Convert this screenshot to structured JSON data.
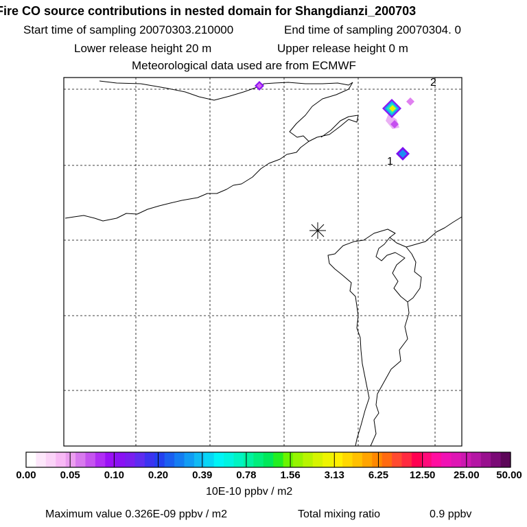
{
  "header": {
    "title": "Fire CO source contributions in nested domain for Shangdianzi_200703",
    "start_time": "Start time of sampling 20070303.210000",
    "end_time": "End time of sampling 20070304.     0",
    "lower_release": "Lower release height   20 m",
    "upper_release": "Upper release height    0 m",
    "met_data": "Meteorological data used are from ECMWF"
  },
  "map": {
    "site_marker": "asterisk-icon",
    "labels": [
      "1",
      "2"
    ]
  },
  "colorbar": {
    "tick_labels": [
      "0.00",
      "0.05",
      "0.10",
      "0.20",
      "0.39",
      "0.78",
      "1.56",
      "3.13",
      "6.25",
      "12.50",
      "25.00",
      "50.00"
    ],
    "colors": [
      "#ffffff",
      "#fde7fb",
      "#fbd3f8",
      "#f8b9f5",
      "#ec9ef0",
      "#d87aee",
      "#c554ef",
      "#b02df4",
      "#9a10f6",
      "#8a12f4",
      "#7a1ef0",
      "#5e2cf0",
      "#3c33f0",
      "#2240f0",
      "#1a5ff0",
      "#147df2",
      "#119cf4",
      "#10baf4",
      "#08d6f6",
      "#00f4f6",
      "#00f4e0",
      "#00f4c2",
      "#00f2a0",
      "#00ee7c",
      "#00e85a",
      "#22ee22",
      "#6af400",
      "#96f400",
      "#b8f400",
      "#d6f400",
      "#eef400",
      "#fff000",
      "#ffd800",
      "#ffc000",
      "#ffa400",
      "#ff8800",
      "#ff6a10",
      "#ff4a30",
      "#ff2a40",
      "#ff0050",
      "#ff0a7a",
      "#ff0ea0",
      "#f012b4",
      "#de16b4",
      "#cc18b0",
      "#b416a4",
      "#98108e",
      "#7a0a76",
      "#5c0658"
    ],
    "units": "10E-10 ppbv / m2"
  },
  "footer": {
    "max_value": "Maximum value  0.326E-09 ppbv / m2",
    "total_label": "Total mixing ratio",
    "total_value": "0.9 ppbv"
  }
}
